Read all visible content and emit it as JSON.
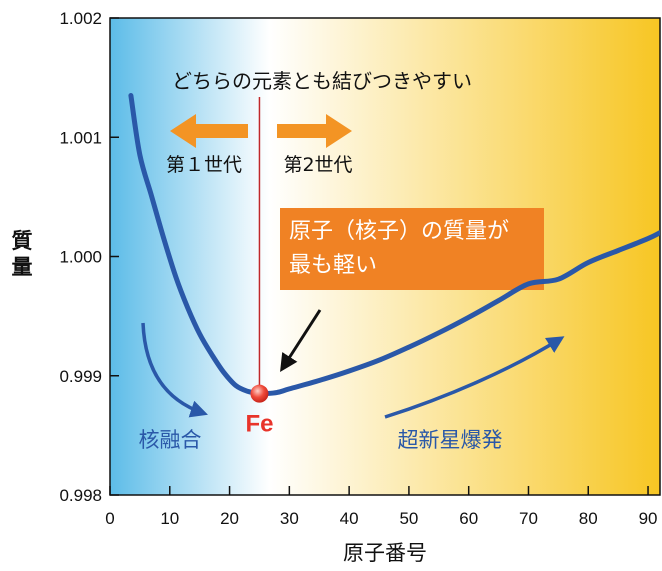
{
  "chart_data": {
    "type": "line",
    "xlabel": "原子番号",
    "ylabel": "質量",
    "xlim": [
      0,
      92
    ],
    "ylim": [
      0.998,
      1.002
    ],
    "x_ticks": [
      "0",
      "10",
      "20",
      "30",
      "40",
      "50",
      "60",
      "70",
      "80",
      "90"
    ],
    "y_ticks": [
      "0.998",
      "0.999",
      "1.000",
      "1.001",
      "1.002"
    ],
    "series": [
      {
        "x": [
          3.5,
          5,
          7,
          9,
          11,
          13,
          15,
          17,
          19,
          21,
          23,
          25,
          26,
          28,
          30,
          35,
          40,
          45,
          50,
          55,
          60,
          65,
          70,
          75,
          80,
          85,
          90,
          92
        ],
        "y": [
          1.00135,
          1.00085,
          1.0005,
          1.00015,
          0.99983,
          0.99957,
          0.99935,
          0.99918,
          0.99903,
          0.99892,
          0.99887,
          0.99885,
          0.99885,
          0.99886,
          0.99889,
          0.99896,
          0.99904,
          0.99913,
          0.99924,
          0.99936,
          0.99949,
          0.99963,
          0.99977,
          0.99981,
          0.99995,
          1.00005,
          1.00015,
          1.0002
        ]
      }
    ],
    "marker": {
      "label": "Fe",
      "x": 25,
      "y": 0.99885
    },
    "annotations": {
      "top": "どちらの元素とも結びつきやすい",
      "first_gen": "第１世代",
      "second_gen": "第2世代",
      "box_line1": "原子（核子）の質量が",
      "box_line2": "最も軽い",
      "fusion": "核融合",
      "supernova": "超新星爆発"
    },
    "colors": {
      "curve": "#2a58a8",
      "fe": "#e8342a",
      "arrow_orange": "#f39424",
      "box": "#f08224",
      "gradient_left": "#5cbce8",
      "gradient_mid": "#ffffff",
      "gradient_right": "#f7c623"
    }
  }
}
